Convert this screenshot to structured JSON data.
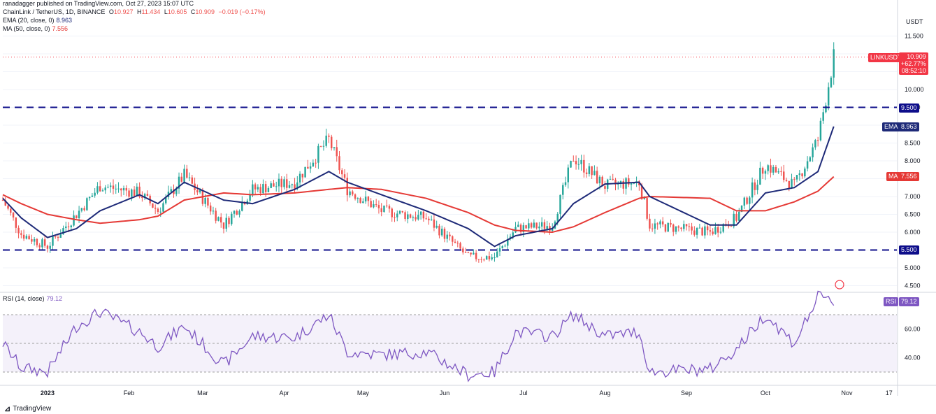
{
  "header": {
    "published": "ranadagger published on TradingView.com, Oct 27, 2023 15:07 UTC",
    "symbol": "ChainLink / TetherUS, 1D, BINANCE",
    "ohlc": {
      "o_label": "O",
      "o": "10.927",
      "h_label": "H",
      "h": "11.434",
      "l_label": "L",
      "l": "10.605",
      "c_label": "C",
      "c": "10.909",
      "change": "−0.019 (−0.17%)"
    },
    "ema_label": "EMA (20, close, 0)",
    "ema_value": "8.963",
    "ma_label": "MA (50, close, 0)",
    "ma_value": "7.556",
    "rsi_label": "RSI (14, close)",
    "rsi_value": "79.12"
  },
  "axis": {
    "currency": "USDT",
    "price_ticks": [
      "11.500",
      "10.000",
      "9.500",
      "8.500",
      "8.000",
      "7.000",
      "6.500",
      "6.000",
      "5.000",
      "4.500"
    ],
    "rsi_ticks": [
      "60.00",
      "40.00"
    ],
    "time_ticks": [
      "2023",
      "Feb",
      "Mar",
      "Apr",
      "May",
      "Jun",
      "Jul",
      "Aug",
      "Sep",
      "Oct",
      "Nov",
      "17"
    ]
  },
  "tags": {
    "last_symbol": "LINKUSDT",
    "last_price": "10.909",
    "last_change": "+62.77%",
    "countdown": "08:52:10",
    "level_high": "9.500",
    "level_low": "5.500",
    "ema_tag": "EMA",
    "ema_val": "8.963",
    "ma_tag": "MA",
    "ma_val": "7.556",
    "rsi_tag": "RSI",
    "rsi_val": "79.12"
  },
  "colors": {
    "up": "#26a69a",
    "down": "#ef5350",
    "ema": "#1e2a78",
    "ma": "#e53935",
    "rsi": "#7e57c2",
    "level": "#0d0d8a",
    "tag_red": "#f23645"
  },
  "footer": {
    "brand": "TradingView"
  },
  "chart_data": {
    "type": "candlestick",
    "title": "ChainLink / TetherUS, 1D, BINANCE",
    "ylabel": "USDT",
    "ylim": [
      4.4,
      11.9
    ],
    "horizontal_levels": [
      9.5,
      5.5
    ],
    "series": [
      {
        "name": "EMA (20, close, 0)",
        "last": 8.963
      },
      {
        "name": "MA (50, close, 0)",
        "last": 7.556
      },
      {
        "name": "RSI (14, close)",
        "last": 79.12
      }
    ],
    "rsi_bands": [
      70,
      50,
      30
    ],
    "anchors": [
      {
        "x": "2022-12-15",
        "close": 6.9,
        "ema": 6.95,
        "ma": 7.05,
        "rsi": 50
      },
      {
        "x": "2022-12-22",
        "close": 5.95,
        "ema": 6.4,
        "ma": 6.8,
        "rsi": 33
      },
      {
        "x": "2023-01-01",
        "close": 5.6,
        "ema": 5.85,
        "ma": 6.5,
        "rsi": 30
      },
      {
        "x": "2023-01-12",
        "close": 6.5,
        "ema": 6.1,
        "ma": 6.35,
        "rsi": 62
      },
      {
        "x": "2023-01-21",
        "close": 7.3,
        "ema": 6.6,
        "ma": 6.25,
        "rsi": 72
      },
      {
        "x": "2023-02-05",
        "close": 7.1,
        "ema": 7.05,
        "ma": 6.35,
        "rsi": 58
      },
      {
        "x": "2023-02-12",
        "close": 6.6,
        "ema": 6.8,
        "ma": 6.45,
        "rsi": 48
      },
      {
        "x": "2023-02-22",
        "close": 7.6,
        "ema": 7.4,
        "ma": 6.9,
        "rsi": 62
      },
      {
        "x": "2023-03-09",
        "close": 6.2,
        "ema": 6.9,
        "ma": 7.1,
        "rsi": 35
      },
      {
        "x": "2023-03-20",
        "close": 7.2,
        "ema": 6.8,
        "ma": 7.05,
        "rsi": 55
      },
      {
        "x": "2023-04-05",
        "close": 7.4,
        "ema": 7.2,
        "ma": 7.1,
        "rsi": 54
      },
      {
        "x": "2023-04-18",
        "close": 8.6,
        "ema": 7.7,
        "ma": 7.2,
        "rsi": 70
      },
      {
        "x": "2023-04-25",
        "close": 7.2,
        "ema": 7.4,
        "ma": 7.25,
        "rsi": 44
      },
      {
        "x": "2023-05-08",
        "close": 6.6,
        "ema": 7.05,
        "ma": 7.2,
        "rsi": 42
      },
      {
        "x": "2023-05-25",
        "close": 6.4,
        "ema": 6.6,
        "ma": 6.95,
        "rsi": 44
      },
      {
        "x": "2023-06-10",
        "close": 5.3,
        "ema": 6.1,
        "ma": 6.55,
        "rsi": 28
      },
      {
        "x": "2023-06-20",
        "close": 5.3,
        "ema": 5.6,
        "ma": 6.2,
        "rsi": 30
      },
      {
        "x": "2023-06-28",
        "close": 6.1,
        "ema": 5.9,
        "ma": 6.05,
        "rsi": 58
      },
      {
        "x": "2023-07-12",
        "close": 6.2,
        "ema": 6.1,
        "ma": 6.0,
        "rsi": 55
      },
      {
        "x": "2023-07-20",
        "close": 8.1,
        "ema": 6.8,
        "ma": 6.15,
        "rsi": 70
      },
      {
        "x": "2023-08-01",
        "close": 7.3,
        "ema": 7.35,
        "ma": 6.55,
        "rsi": 55
      },
      {
        "x": "2023-08-14",
        "close": 7.4,
        "ema": 7.4,
        "ma": 6.95,
        "rsi": 58
      },
      {
        "x": "2023-08-18",
        "close": 6.2,
        "ema": 7.0,
        "ma": 7.0,
        "rsi": 30
      },
      {
        "x": "2023-09-10",
        "close": 6.0,
        "ema": 6.2,
        "ma": 6.95,
        "rsi": 32
      },
      {
        "x": "2023-09-20",
        "close": 6.4,
        "ema": 6.2,
        "ma": 6.6,
        "rsi": 46
      },
      {
        "x": "2023-10-01",
        "close": 7.9,
        "ema": 7.1,
        "ma": 6.6,
        "rsi": 70
      },
      {
        "x": "2023-10-12",
        "close": 7.3,
        "ema": 7.25,
        "ma": 6.85,
        "rsi": 50
      },
      {
        "x": "2023-10-21",
        "close": 8.6,
        "ema": 7.7,
        "ma": 7.15,
        "rsi": 82
      },
      {
        "x": "2023-10-27",
        "close": 10.909,
        "ema": 8.963,
        "ma": 7.556,
        "rsi": 79.12
      }
    ]
  }
}
